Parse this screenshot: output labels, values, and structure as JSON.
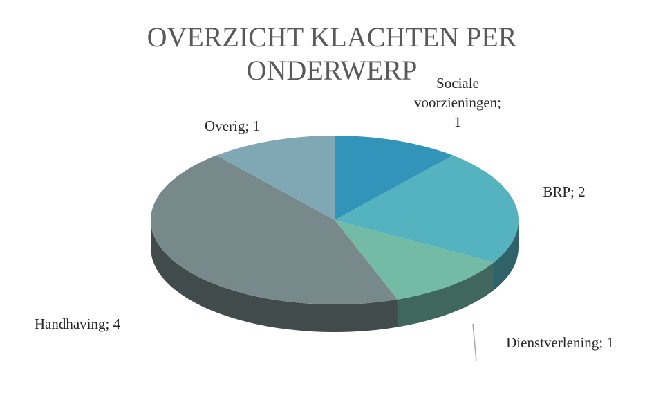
{
  "chart_data": {
    "type": "pie3d",
    "title": "OVERZICHT KLACHTEN PER ONDERWERP",
    "categories": [
      "Sociale voorzieningen",
      "BRP",
      "Dienstverlening",
      "Handhaving",
      "Overig"
    ],
    "values": [
      1,
      2,
      1,
      4,
      1
    ],
    "value_labels": [
      "Sociale voorzieningen; 1",
      "BRP; 2",
      "Dienstverlening; 1",
      "Handhaving; 4",
      "Overig; 1"
    ],
    "colors": [
      "#3294b8",
      "#55b2bf",
      "#74bba6",
      "#77898b",
      "#7fa8b4"
    ]
  }
}
